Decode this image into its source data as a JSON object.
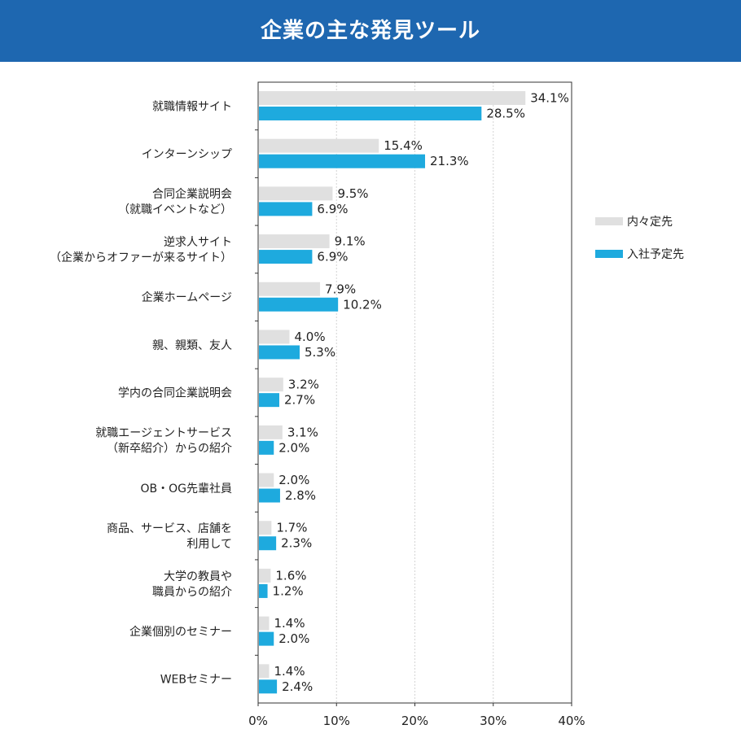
{
  "header": {
    "title": "企業の主な発見ツール"
  },
  "chart_data": {
    "type": "bar",
    "orientation": "horizontal",
    "title": "企業の主な発見ツール",
    "categories": [
      [
        "就職情報サイト"
      ],
      [
        "インターンシップ"
      ],
      [
        "合同企業説明会",
        "（就職イベントなど）"
      ],
      [
        "逆求人サイト",
        "（企業からオファーが来るサイト）"
      ],
      [
        "企業ホームページ"
      ],
      [
        "親、親類、友人"
      ],
      [
        "学内の合同企業説明会"
      ],
      [
        "就職エージェントサービス",
        "（新卒紹介）からの紹介"
      ],
      [
        "OB・OG先輩社員"
      ],
      [
        "商品、サービス、店舗を",
        "利用して"
      ],
      [
        "大学の教員や",
        "職員からの紹介"
      ],
      [
        "企業個別のセミナー"
      ],
      [
        "WEBセミナー"
      ]
    ],
    "series": [
      {
        "name": "内々定先",
        "color": "#e0e0e0",
        "values": [
          34.1,
          15.4,
          9.5,
          9.1,
          7.9,
          4.0,
          3.2,
          3.1,
          2.0,
          1.7,
          1.6,
          1.4,
          1.4
        ],
        "labels": [
          "34.1%",
          "15.4%",
          "9.5%",
          "9.1%",
          "7.9%",
          "4.0%",
          "3.2%",
          "3.1%",
          "2.0%",
          "1.7%",
          "1.6%",
          "1.4%",
          "1.4%"
        ]
      },
      {
        "name": "入社予定先",
        "color": "#1eaade",
        "values": [
          28.5,
          21.3,
          6.9,
          6.9,
          10.2,
          5.3,
          2.7,
          2.0,
          2.8,
          2.3,
          1.2,
          2.0,
          2.4
        ],
        "labels": [
          "28.5%",
          "21.3%",
          "6.9%",
          "6.9%",
          "10.2%",
          "5.3%",
          "2.7%",
          "2.0%",
          "2.8%",
          "2.3%",
          "1.2%",
          "2.0%",
          "2.4%"
        ]
      }
    ],
    "x_ticks": [
      "0%",
      "10%",
      "20%",
      "30%",
      "40%"
    ],
    "xlim": [
      0,
      40
    ],
    "grid": true,
    "legend_position": "right"
  }
}
